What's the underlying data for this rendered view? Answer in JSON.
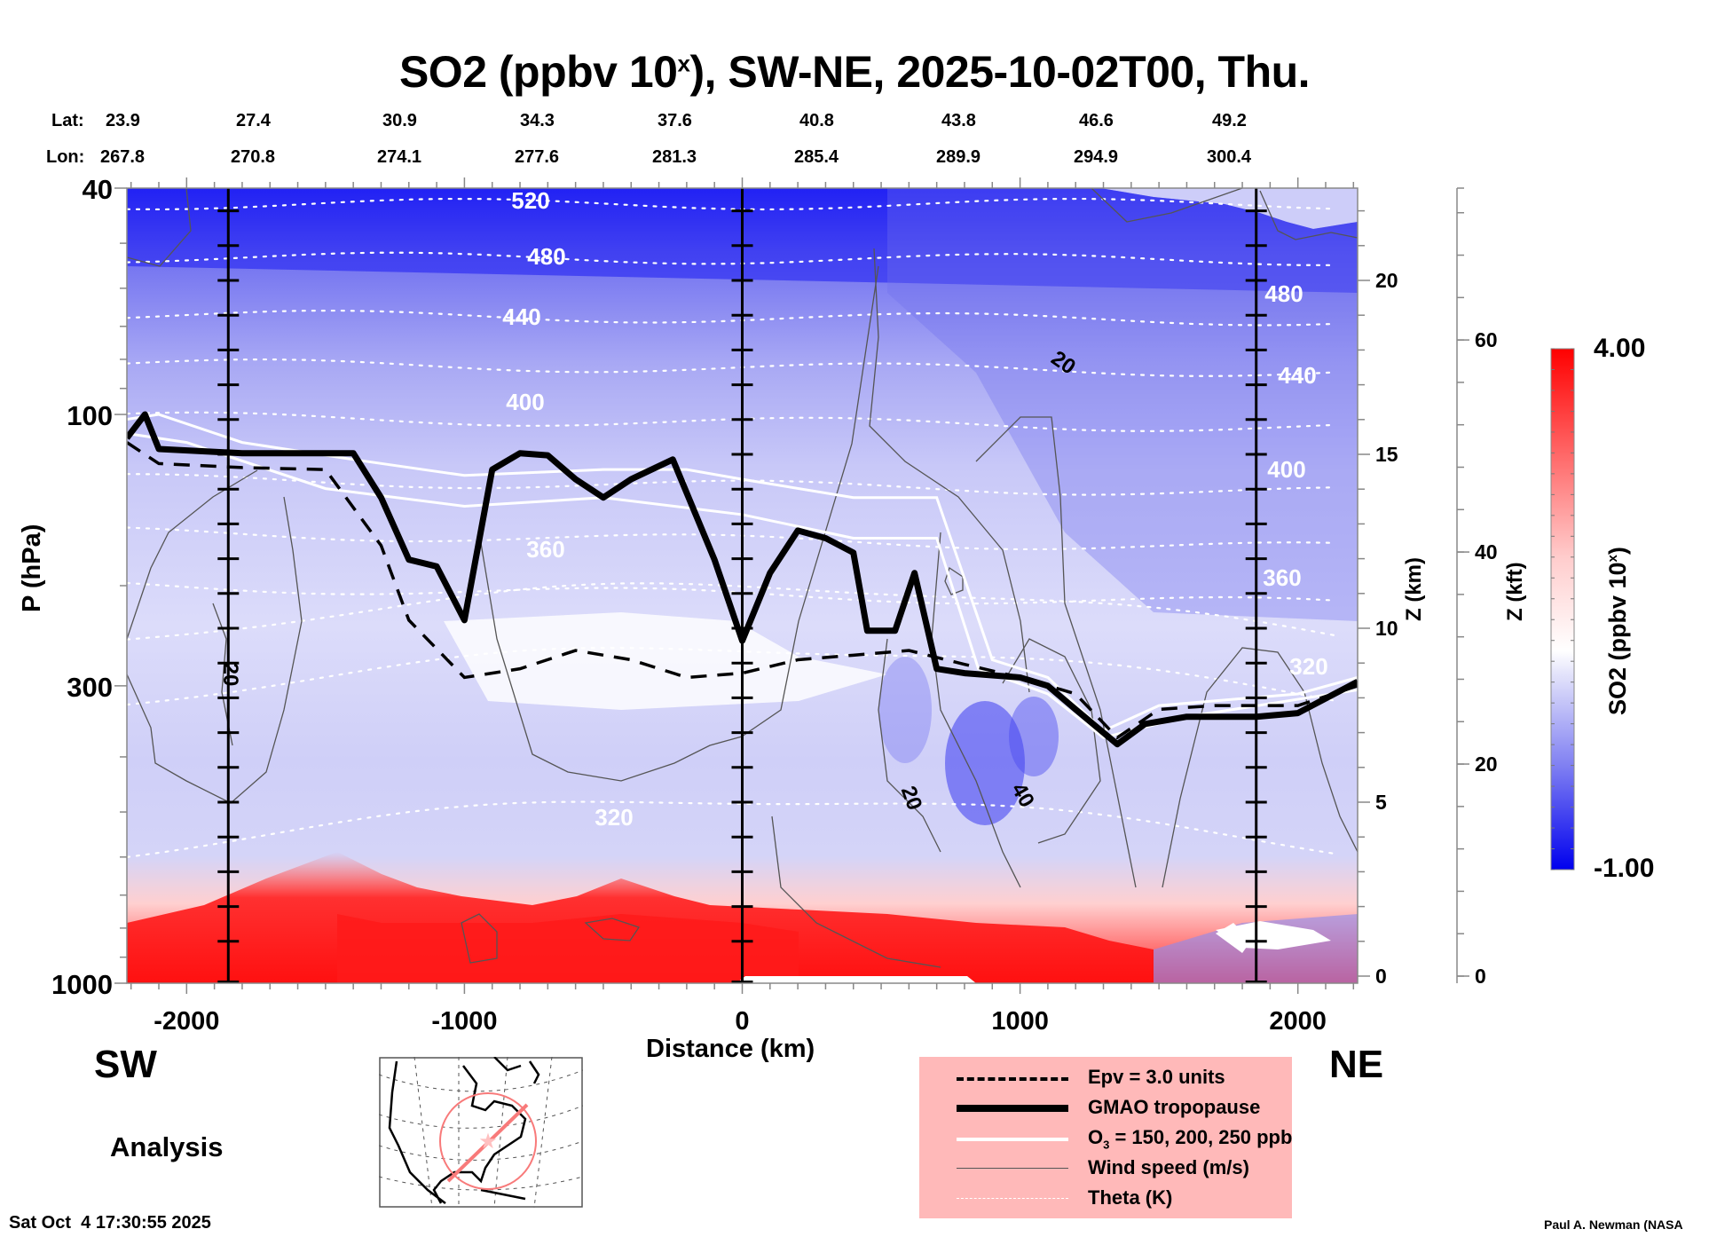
{
  "chart_data": {
    "type": "heatmap",
    "title": "SO2 (ppbv 10",
    "title_sup": "x",
    "title_suffix": "), SW-NE, 2025-10-02T00, Thu.",
    "xlabel": "Distance (km)",
    "ylabel": "P (hPa)",
    "y2label": "Z (km)",
    "y3label": "Z (kft)",
    "xlim": [
      -2215,
      2215
    ],
    "ylim_hpa": [
      1000,
      40
    ],
    "xticks": [
      -2000,
      -1000,
      0,
      1000,
      2000
    ],
    "yticks_hpa": [
      40,
      100,
      300,
      1000
    ],
    "yticks_km": [
      0,
      5,
      10,
      15,
      20
    ],
    "yticks_kft": [
      0,
      20,
      40,
      60
    ],
    "header_rows": {
      "lat_label": "Lat:",
      "lon_label": "Lon:",
      "lat": [
        "23.9",
        "27.4",
        "30.9",
        "34.3",
        "37.6",
        "40.8",
        "43.8",
        "46.6",
        "49.2"
      ],
      "lon": [
        "267.8",
        "270.8",
        "274.1",
        "277.6",
        "281.3",
        "285.4",
        "289.9",
        "294.9",
        "300.4"
      ]
    },
    "colorbar": {
      "label": "SO2 (ppbv 10",
      "label_sup": "x",
      "label_suffix": ")",
      "min": -1.0,
      "max": 4.0,
      "min_label": "-1.00",
      "max_label": "4.00",
      "colors": [
        "#0000ee",
        "#ffffff",
        "#ff0000"
      ]
    },
    "theta_contours_K": [
      {
        "value": 320,
        "label": "320"
      },
      {
        "value": 360,
        "label": "360"
      },
      {
        "value": 400,
        "label": "400"
      },
      {
        "value": 440,
        "label": "440"
      },
      {
        "value": 480,
        "label": "480"
      },
      {
        "value": 520,
        "label": "520"
      }
    ],
    "theta_right_labels": [
      "480",
      "440",
      "400",
      "360",
      "320"
    ],
    "wind_speed_labels": [
      "20",
      "20",
      "20",
      "40"
    ],
    "vertical_markers_km": [
      -1850,
      0,
      1850
    ],
    "tropopause_hpa": [
      [
        -2215,
        110
      ],
      [
        -2150,
        100
      ],
      [
        -2100,
        115
      ],
      [
        -1800,
        117
      ],
      [
        -1400,
        117
      ],
      [
        -1300,
        140
      ],
      [
        -1200,
        180
      ],
      [
        -1100,
        185
      ],
      [
        -1000,
        230
      ],
      [
        -900,
        125
      ],
      [
        -800,
        117
      ],
      [
        -700,
        118
      ],
      [
        -600,
        130
      ],
      [
        -500,
        140
      ],
      [
        -400,
        130
      ],
      [
        -250,
        120
      ],
      [
        -100,
        180
      ],
      [
        0,
        250
      ],
      [
        100,
        190
      ],
      [
        200,
        160
      ],
      [
        300,
        165
      ],
      [
        400,
        175
      ],
      [
        450,
        240
      ],
      [
        550,
        240
      ],
      [
        620,
        190
      ],
      [
        700,
        280
      ],
      [
        800,
        285
      ],
      [
        1000,
        290
      ],
      [
        1100,
        300
      ],
      [
        1200,
        330
      ],
      [
        1350,
        380
      ],
      [
        1450,
        350
      ],
      [
        1600,
        340
      ],
      [
        1850,
        340
      ],
      [
        2000,
        335
      ],
      [
        2215,
        295
      ]
    ],
    "epv_3_hpa": [
      [
        -2215,
        112
      ],
      [
        -2100,
        122
      ],
      [
        -1800,
        124
      ],
      [
        -1500,
        125
      ],
      [
        -1300,
        170
      ],
      [
        -1200,
        230
      ],
      [
        -1000,
        290
      ],
      [
        -800,
        280
      ],
      [
        -600,
        260
      ],
      [
        -400,
        270
      ],
      [
        -200,
        290
      ],
      [
        0,
        285
      ],
      [
        200,
        270
      ],
      [
        400,
        265
      ],
      [
        600,
        260
      ],
      [
        800,
        275
      ],
      [
        1000,
        290
      ],
      [
        1200,
        310
      ],
      [
        1350,
        370
      ],
      [
        1500,
        330
      ],
      [
        1700,
        325
      ],
      [
        2000,
        325
      ],
      [
        2215,
        300
      ]
    ],
    "o3_contours_hpa": [
      [
        [
          -2215,
          102
        ],
        [
          -2100,
          100
        ],
        [
          -1800,
          112
        ],
        [
          -1400,
          120
        ],
        [
          -1000,
          128
        ],
        [
          -500,
          125
        ],
        [
          -200,
          125
        ],
        [
          0,
          130
        ],
        [
          400,
          140
        ],
        [
          700,
          140
        ],
        [
          900,
          270
        ],
        [
          1100,
          290
        ],
        [
          1300,
          360
        ],
        [
          1500,
          325
        ],
        [
          2000,
          310
        ],
        [
          2215,
          290
        ]
      ],
      [
        [
          -2215,
          108
        ],
        [
          -2000,
          112
        ],
        [
          -1500,
          135
        ],
        [
          -1000,
          145
        ],
        [
          -500,
          140
        ],
        [
          0,
          150
        ],
        [
          400,
          165
        ],
        [
          700,
          165
        ],
        [
          850,
          280
        ],
        [
          1100,
          310
        ],
        [
          1300,
          370
        ],
        [
          1600,
          340
        ],
        [
          2215,
          305
        ]
      ]
    ],
    "legend": [
      {
        "style": "dashed-thick",
        "label": "Epv = 3.0 units"
      },
      {
        "style": "solid-black-thick",
        "label": "GMAO tropopause"
      },
      {
        "style": "solid-white",
        "label_pre": "O",
        "label_sub": "3",
        "label_post": " = 150, 200, 250 ppb"
      },
      {
        "style": "solid-thin",
        "label": "Wind speed (m/s)"
      },
      {
        "style": "dotted-white",
        "label": "Theta (K)"
      }
    ]
  },
  "labels": {
    "sw": "SW",
    "ne": "NE",
    "analysis": "Analysis",
    "timestamp": "Sat Oct  4 17:30:55 2025",
    "credit": "Paul A. Newman (NASA"
  },
  "map_inset": {
    "region": "North America / Western Atlantic",
    "features": [
      "coastlines",
      "lat-lon grid",
      "range circle",
      "section line",
      "center star"
    ]
  }
}
